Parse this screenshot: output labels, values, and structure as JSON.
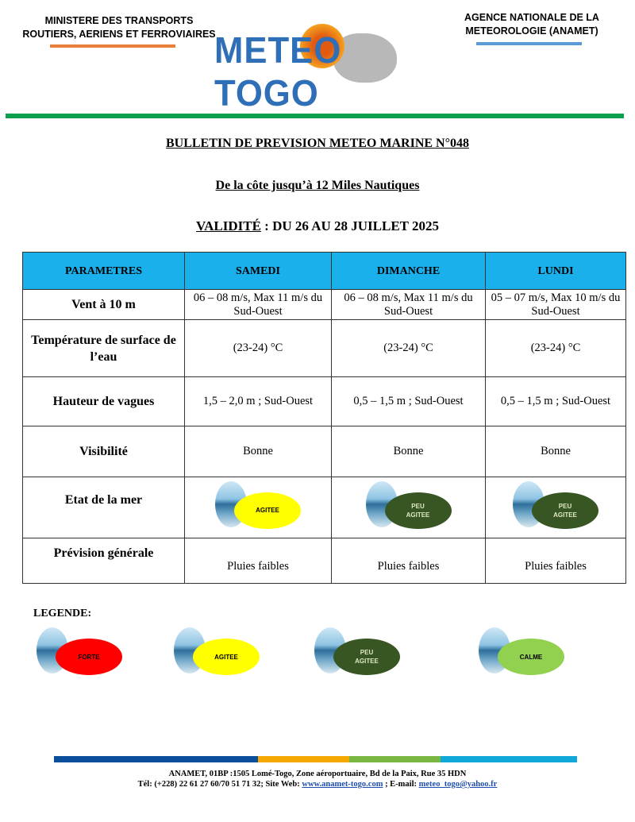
{
  "header": {
    "ministry": [
      "MINISTERE DES TRANSPORTS",
      "ROUTIERS, AERIENS ET FERROVIAIRES"
    ],
    "agency": [
      "AGENCE NATIONALE DE LA",
      "METEOROLOGIE (ANAMET)"
    ],
    "logo_text": "METEO TOGO"
  },
  "titles": {
    "bulletin": "BULLETIN DE PREVISION METEO MARINE N°048",
    "zone": "De la côte jusqu’à 12 Miles Nautiques",
    "validity_label": "VALIDITÉ",
    "validity_value": " : DU 26 AU 28 JUILLET 2025"
  },
  "table": {
    "headers": [
      "PARAMETRES",
      "SAMEDI",
      "DIMANCHE",
      "LUNDI"
    ],
    "rows": [
      {
        "param": "Vent à 10 m",
        "values": [
          "06 – 08 m/s, Max 11 m/s du Sud-Ouest",
          "06 – 08 m/s, Max 11 m/s du Sud-Ouest",
          "05 – 07 m/s, Max 10 m/s du Sud-Ouest"
        ]
      },
      {
        "param": "Température de surface de l’eau",
        "values": [
          "(23-24) °C",
          "(23-24) °C",
          "(23-24) °C"
        ]
      },
      {
        "param": "Hauteur de vagues",
        "values": [
          "1,5 – 2,0 m ; Sud-Ouest",
          "0,5 – 1,5 m ; Sud-Ouest",
          "0,5 – 1,5 m ; Sud-Ouest"
        ]
      },
      {
        "param": "Visibilité",
        "values": [
          "Bonne",
          "Bonne",
          "Bonne"
        ]
      },
      {
        "param": "Etat de la mer",
        "values": [
          "AGITEE",
          "PEU AGITEE",
          "PEU AGITEE"
        ]
      },
      {
        "param": "Prévision générale",
        "values": [
          "Pluies faibles",
          "Pluies faibles",
          "Pluies faibles"
        ]
      }
    ]
  },
  "legend": {
    "title": "LEGENDE:",
    "items": [
      {
        "label": "FORTE",
        "color": "#ff0000"
      },
      {
        "label": "AGITEE",
        "color": "#ffff00"
      },
      {
        "label": "PEU AGITEE",
        "color": "#375623"
      },
      {
        "label": "CALME",
        "color": "#92d050"
      }
    ]
  },
  "colors": {
    "header_bg": "#1ab0ec",
    "green_rule": "#0aa050",
    "ministry_rule": "#e8803a",
    "agency_rule": "#5b9bd5"
  },
  "footer": {
    "line1": "ANAMET, 01BP :1505 Lomé-Togo, Zone aéroportuaire, Bd de la Paix, Rue 35 HDN",
    "tel": "Tél: (+228) 22 61 27 60/70 51 71 32; Site Web: ",
    "site": "www.anamet-togo.com",
    "email_label": " ; E-mail: ",
    "email": "meteo_togo@yahoo.fr"
  }
}
